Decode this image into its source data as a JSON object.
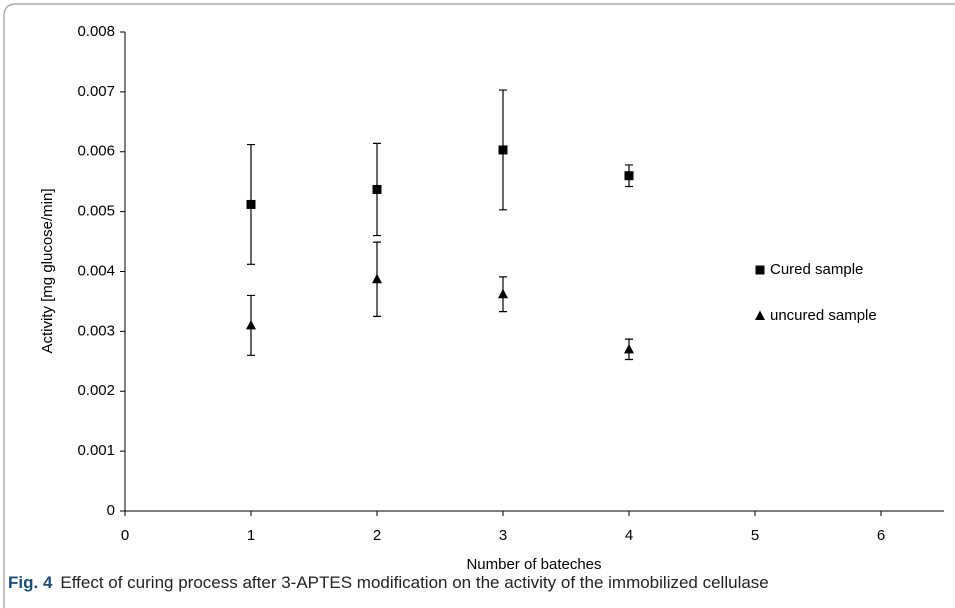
{
  "chart_data": {
    "type": "scatter",
    "xlabel": "Number of bateches",
    "ylabel": "Activity [mg glucose/min]",
    "xlim": [
      0,
      6.5
    ],
    "xticks": [
      0,
      1,
      2,
      3,
      4,
      5,
      6
    ],
    "ylim": [
      0,
      0.008
    ],
    "yticks": [
      0,
      0.001,
      0.002,
      0.003,
      0.004,
      0.005,
      0.006,
      0.007,
      0.008
    ],
    "legend": "right",
    "series": [
      {
        "name": "Cured sample",
        "color": "#000000",
        "marker": "square",
        "x": [
          1,
          2,
          3,
          4
        ],
        "values": [
          0.00512,
          0.00537,
          0.00603,
          0.0056
        ],
        "errors": [
          0.001,
          0.00077,
          0.001,
          0.00018
        ]
      },
      {
        "name": "uncured sample",
        "color": "#000000",
        "marker": "triangle",
        "x": [
          1,
          2,
          3,
          4
        ],
        "values": [
          0.0031,
          0.00387,
          0.00362,
          0.0027
        ],
        "errors": [
          0.0005,
          0.00062,
          0.00029,
          0.00017
        ]
      }
    ]
  },
  "caption": {
    "label": "Fig. 4",
    "text": "Effect of curing process after 3-APTES modification on the activity of the immobilized cellulase"
  }
}
